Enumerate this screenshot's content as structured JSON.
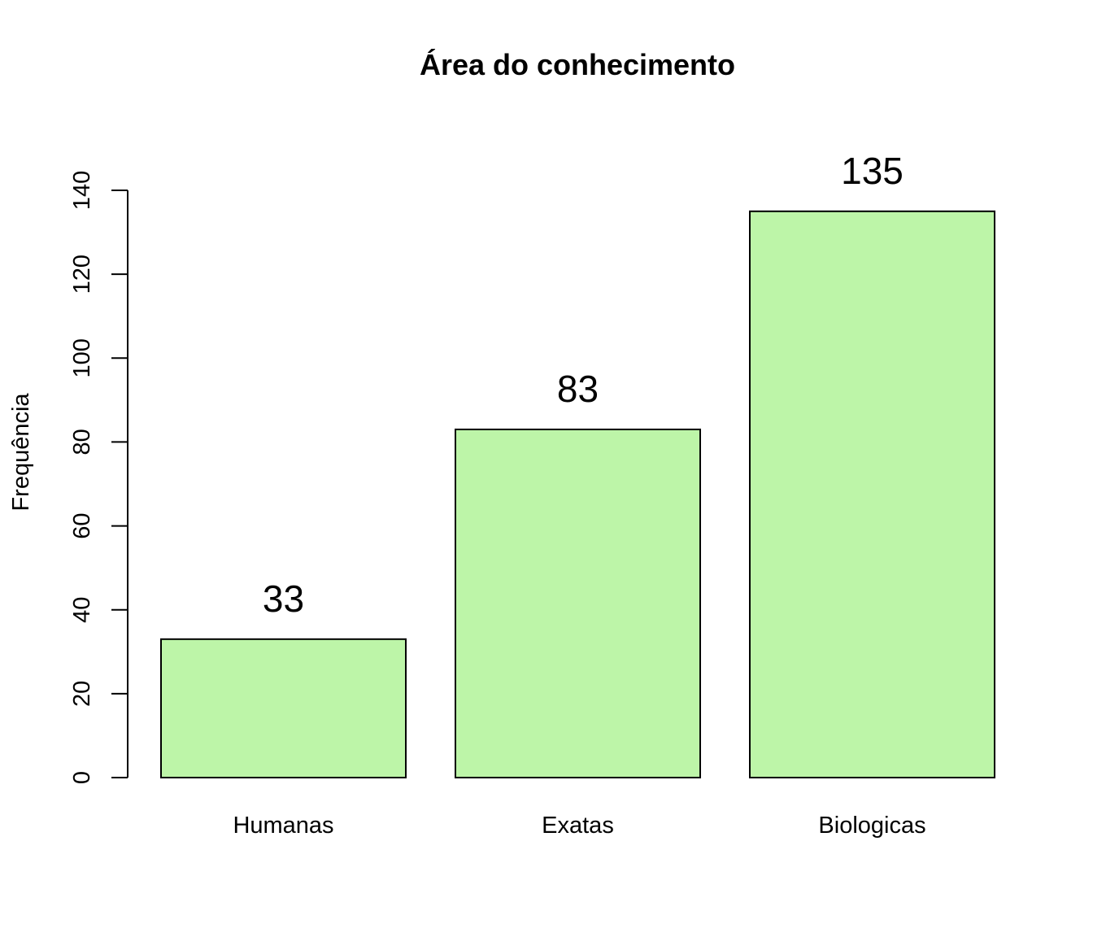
{
  "chart_data": {
    "type": "bar",
    "title": "Área do conhecimento",
    "xlabel": "",
    "ylabel": "Frequência",
    "categories": [
      "Humanas",
      "Exatas",
      "Biologicas"
    ],
    "values": [
      33,
      83,
      135
    ],
    "data_labels": [
      "33",
      "83",
      "135"
    ],
    "ylim": [
      0,
      140
    ],
    "yticks": [
      0,
      20,
      40,
      60,
      80,
      100,
      120,
      140
    ],
    "ytick_labels": [
      "0",
      "20",
      "40",
      "60",
      "80",
      "100",
      "120",
      "140"
    ],
    "bar_color": "#bdf5a8",
    "grid": false,
    "legend": "none"
  }
}
